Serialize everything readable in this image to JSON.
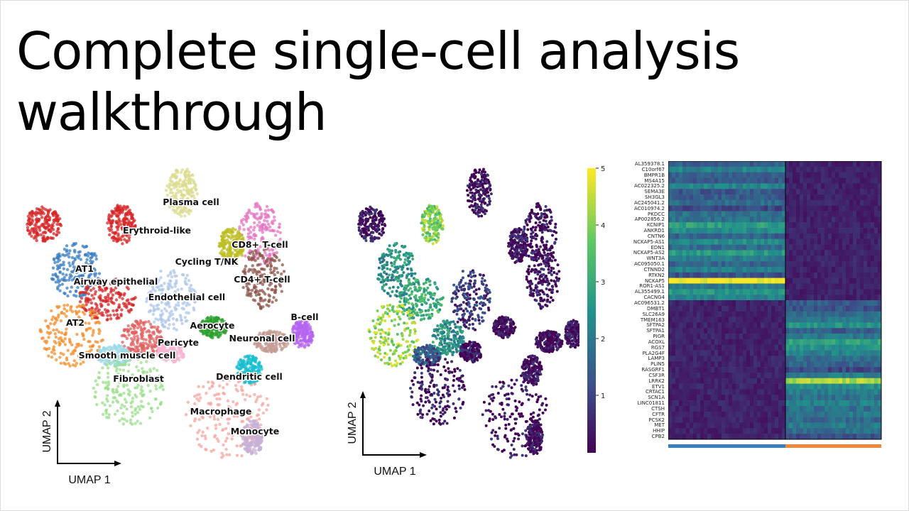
{
  "slide": {
    "title_line1": "Complete single-cell analysis",
    "title_line2": "walkthrough"
  },
  "umap_celltypes": {
    "xlabel": "UMAP 1",
    "ylabel": "UMAP 2",
    "labels": [
      "Plasma cell",
      "Erythroid-like",
      "Cycling T/NK",
      "CD8+ T-cell",
      "AT1",
      "Airway epithelial",
      "Endothelial cell",
      "CD4+ T-cell",
      "AT2",
      "Aerocyte",
      "Neuronal cell",
      "B-cell",
      "Pericyte",
      "Smooth muscle cell",
      "Fibroblast",
      "Dendritic cell",
      "Macrophage",
      "Monocyte"
    ],
    "colors": {
      "AT2": "#f28e2b",
      "AT1": "#3a7dc0",
      "Fibroblast": "#98df8a",
      "Macrophage": "#f4a6a0",
      "Plasma cell": "#dbdb8d",
      "CD4+ T-cell": "#8c564b",
      "CD8+ T-cell": "#e377c2",
      "Airway epithelial": "#d62728",
      "Endothelial cell": "#aec7e8",
      "Aerocyte": "#2ca02c",
      "B-cell": "#b464f0"
    }
  },
  "umap_expression": {
    "xlabel": "UMAP 1",
    "ylabel": "UMAP 2",
    "colormap": "viridis",
    "colorbar_ticks": [
      "1",
      "2",
      "3",
      "4",
      "5"
    ],
    "colorbar_range": [
      0,
      5
    ]
  },
  "heatmap": {
    "colormap": "viridis",
    "genes": [
      "AL359378.1",
      "C10orf67",
      "BMPR1B",
      "MS4A15",
      "AC022325.2",
      "SEMA3E",
      "SH3GL3",
      "AC245041.2",
      "AC010974.2",
      "PKDCC",
      "AP002856.2",
      "KCNIP1",
      "ANKRD1",
      "CNTN6",
      "NCKAP5-AS1",
      "EDN1",
      "NCKAP5-AS2",
      "WNT3A",
      "AC095050.1",
      "CTNND2",
      "RTKN2",
      "NCKAP5",
      "ROR1-AS1",
      "AL355499.1",
      "CACNG4",
      "AC096531.2",
      "DMBT1",
      "SLC26A9",
      "TMEM163",
      "SFTPA2",
      "SFTPA1",
      "PIGR",
      "ACOXL",
      "RGS7",
      "PLA2G4F",
      "LAMP3",
      "PLIN5",
      "RASGRF1",
      "CSF3R",
      "LRRK2",
      "ETV1",
      "CRTAC1",
      "SCN1A",
      "LINC01811",
      "CTSH",
      "CFTR",
      "PCSK2",
      "MET",
      "HHIP",
      "CPB2"
    ],
    "group_colors": [
      "#3a7dc0",
      "#f0883a"
    ]
  }
}
